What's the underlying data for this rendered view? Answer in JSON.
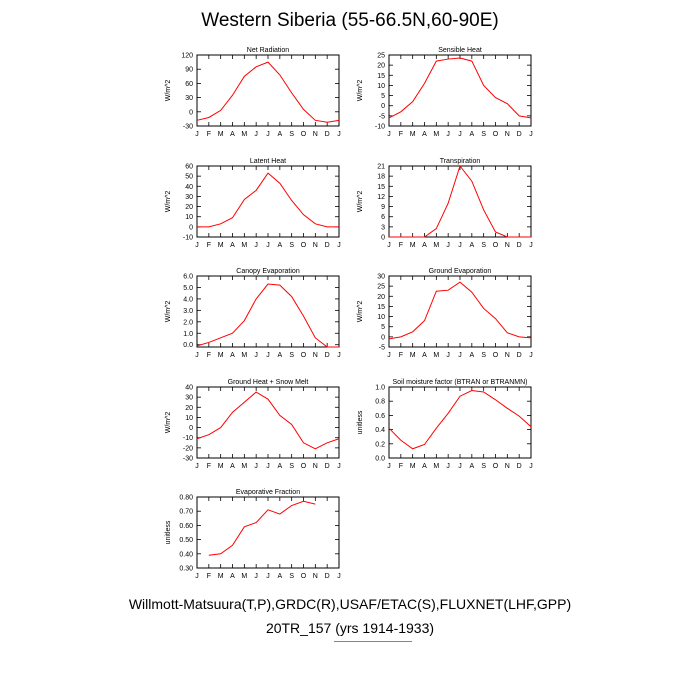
{
  "title": "Western Siberia (55-66.5N,60-90E)",
  "footer_line1": "Willmott-Matsuura(T,P),GRDC(R),USAF/ETAC(S),FLUXNET(LHF,GPP)",
  "footer_line2": "20TR_157 (yrs 1914-1933)",
  "line_color": "#ff0000",
  "chart_data": [
    {
      "type": "line",
      "title": "Net Radiation",
      "ylabel": "W/m^2",
      "categories": [
        "J",
        "F",
        "M",
        "A",
        "M",
        "J",
        "J",
        "A",
        "S",
        "O",
        "N",
        "D",
        "J"
      ],
      "ylim": [
        -30,
        120
      ],
      "yticks": [
        -30,
        0,
        30,
        60,
        90,
        120
      ],
      "ytick_labels": [
        "-30",
        "0",
        "30",
        "60",
        "90",
        "120"
      ],
      "values": [
        -18,
        -12,
        3,
        35,
        75,
        95,
        105,
        78,
        40,
        5,
        -18,
        -22,
        -18
      ]
    },
    {
      "type": "line",
      "title": "Sensible Heat",
      "ylabel": "W/m^2",
      "categories": [
        "J",
        "F",
        "M",
        "A",
        "M",
        "J",
        "J",
        "A",
        "S",
        "O",
        "N",
        "D",
        "J"
      ],
      "ylim": [
        -10,
        25
      ],
      "yticks": [
        -10,
        -5,
        0,
        5,
        10,
        15,
        20,
        25
      ],
      "ytick_labels": [
        "-10",
        "-5",
        "0",
        "5",
        "10",
        "15",
        "20",
        "25"
      ],
      "values": [
        -6,
        -3,
        2,
        11,
        22,
        23,
        23.5,
        22,
        10,
        4,
        1,
        -5,
        -6
      ]
    },
    {
      "type": "line",
      "title": "Latent Heat",
      "ylabel": "W/m^2",
      "categories": [
        "J",
        "F",
        "M",
        "A",
        "M",
        "J",
        "J",
        "A",
        "S",
        "O",
        "N",
        "D",
        "J"
      ],
      "ylim": [
        -10,
        60
      ],
      "yticks": [
        -10,
        0,
        10,
        20,
        30,
        40,
        50,
        60
      ],
      "ytick_labels": [
        "-10",
        "0",
        "10",
        "20",
        "30",
        "40",
        "50",
        "60"
      ],
      "values": [
        0,
        0,
        3,
        9,
        27,
        36,
        53,
        43,
        26,
        12,
        3,
        0,
        0
      ]
    },
    {
      "type": "line",
      "title": "Transpiration",
      "ylabel": "W/m^2",
      "categories": [
        "J",
        "F",
        "M",
        "A",
        "M",
        "J",
        "J",
        "A",
        "S",
        "O",
        "N",
        "D",
        "J"
      ],
      "ylim": [
        0,
        21
      ],
      "yticks": [
        0,
        3,
        6,
        9,
        12,
        15,
        18,
        21
      ],
      "ytick_labels": [
        "0",
        "3",
        "6",
        "9",
        "12",
        "15",
        "18",
        "21"
      ],
      "values": [
        0,
        0,
        0,
        0,
        2.5,
        10,
        21,
        16.5,
        8,
        1.5,
        0,
        0,
        0
      ]
    },
    {
      "type": "line",
      "title": "Canopy Evaporation",
      "ylabel": "W/m^2",
      "categories": [
        "J",
        "F",
        "M",
        "A",
        "M",
        "J",
        "J",
        "A",
        "S",
        "O",
        "N",
        "D",
        "J"
      ],
      "ylim": [
        -0.2,
        6.0
      ],
      "yticks": [
        0.0,
        1.0,
        2.0,
        3.0,
        4.0,
        5.0,
        6.0
      ],
      "ytick_labels": [
        "0.0",
        "1.0",
        "2.0",
        "3.0",
        "4.0",
        "5.0",
        "6.0"
      ],
      "values": [
        -0.1,
        0.2,
        0.6,
        1.0,
        2.1,
        4.0,
        5.3,
        5.2,
        4.2,
        2.5,
        0.6,
        -0.2,
        -0.2
      ]
    },
    {
      "type": "line",
      "title": "Ground Evaporation",
      "ylabel": "W/m^2",
      "categories": [
        "J",
        "F",
        "M",
        "A",
        "M",
        "J",
        "J",
        "A",
        "S",
        "O",
        "N",
        "D",
        "J"
      ],
      "ylim": [
        -5,
        30
      ],
      "yticks": [
        -5,
        0,
        5,
        10,
        15,
        20,
        25,
        30
      ],
      "ytick_labels": [
        "-5",
        "0",
        "5",
        "10",
        "15",
        "20",
        "25",
        "30"
      ],
      "values": [
        -1,
        0,
        2.5,
        8,
        22.5,
        23,
        27,
        22,
        14,
        9,
        2,
        0,
        -0.5
      ]
    },
    {
      "type": "line",
      "title": "Ground Heat + Snow Melt",
      "ylabel": "W/m^2",
      "categories": [
        "J",
        "F",
        "M",
        "A",
        "M",
        "J",
        "J",
        "A",
        "S",
        "O",
        "N",
        "D",
        "J"
      ],
      "ylim": [
        -30,
        40
      ],
      "yticks": [
        -30,
        -20,
        -10,
        0,
        10,
        20,
        30,
        40
      ],
      "ytick_labels": [
        "-30",
        "-20",
        "-10",
        "0",
        "10",
        "20",
        "30",
        "40"
      ],
      "values": [
        -11,
        -7,
        0,
        15,
        25,
        35,
        28,
        12,
        3,
        -15,
        -21,
        -15,
        -11
      ]
    },
    {
      "type": "line",
      "title": "Soil moisture factor (BTRAN or BTRANMN)",
      "ylabel": "unitless",
      "categories": [
        "J",
        "F",
        "M",
        "A",
        "M",
        "J",
        "J",
        "A",
        "S",
        "O",
        "N",
        "D",
        "J"
      ],
      "ylim": [
        0.0,
        1.0
      ],
      "yticks": [
        0.0,
        0.2,
        0.4,
        0.6,
        0.8,
        1.0
      ],
      "ytick_labels": [
        "0.0",
        "0.2",
        "0.4",
        "0.6",
        "0.8",
        "1.0"
      ],
      "values": [
        0.42,
        0.25,
        0.13,
        0.19,
        0.42,
        0.63,
        0.87,
        0.95,
        0.93,
        0.82,
        0.7,
        0.59,
        0.44
      ]
    },
    {
      "type": "line",
      "title": "Evaporative Fraction",
      "ylabel": "unitless",
      "categories": [
        "J",
        "F",
        "M",
        "A",
        "M",
        "J",
        "J",
        "A",
        "S",
        "O",
        "N",
        "D",
        "J"
      ],
      "ylim": [
        0.3,
        0.8
      ],
      "yticks": [
        0.3,
        0.4,
        0.5,
        0.6,
        0.7,
        0.8
      ],
      "ytick_labels": [
        "0.30",
        "0.40",
        "0.50",
        "0.60",
        "0.70",
        "0.80"
      ],
      "values": [
        null,
        0.39,
        0.4,
        0.46,
        0.59,
        0.62,
        0.71,
        0.68,
        0.74,
        0.77,
        0.75,
        null,
        null
      ]
    }
  ]
}
